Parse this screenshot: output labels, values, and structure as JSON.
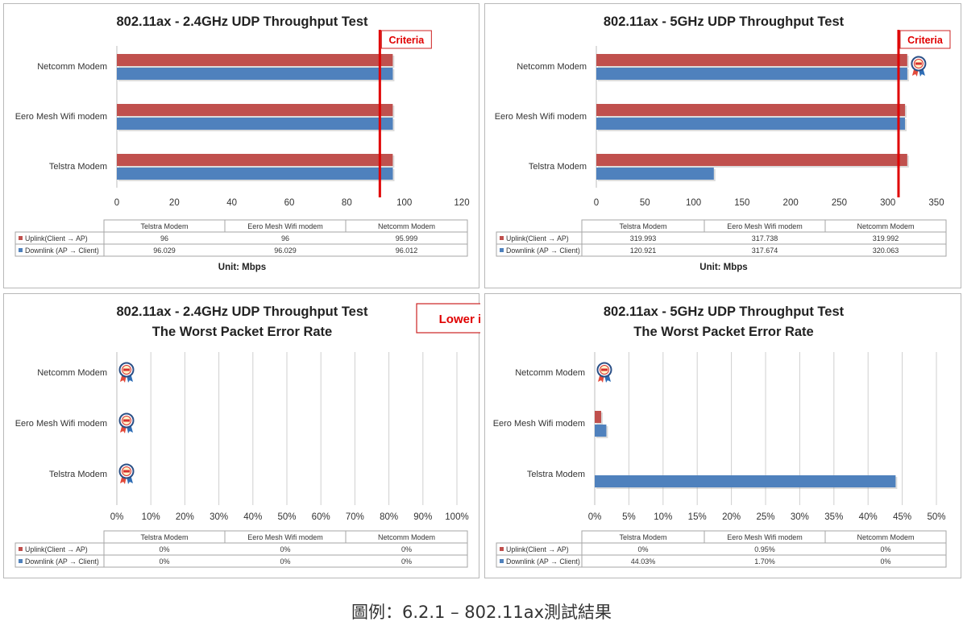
{
  "chart_data": [
    {
      "type": "bar",
      "title": [
        "802.11ax - 2.4GHz UDP Throughput Test"
      ],
      "categories": [
        "Netcomm Modem",
        "Eero Mesh Wifi modem",
        "Telstra Modem"
      ],
      "series": [
        {
          "name": "Uplink(Client → AP)",
          "color": "#c0504d",
          "values": [
            95.999,
            96,
            96
          ]
        },
        {
          "name": "Downlink (AP → Client)",
          "color": "#4f81bd",
          "values": [
            96.012,
            96.029,
            96.029
          ]
        }
      ],
      "xlim": [
        0,
        120
      ],
      "ticks": [
        0,
        20,
        40,
        60,
        80,
        100,
        120
      ],
      "tick_labels": [
        "0",
        "20",
        "40",
        "60",
        "80",
        "100",
        "120"
      ],
      "criteria": {
        "label": "Criteria",
        "value": 91.5
      },
      "table": {
        "columns": [
          "Telstra Modem",
          "Eero Mesh Wifi modem",
          "Netcomm Modem"
        ],
        "rows": [
          {
            "label": "Uplink(Client → AP)",
            "cells": [
              "96",
              "96",
              "95.999"
            ]
          },
          {
            "label": "Downlink (AP → Client)",
            "cells": [
              "96.029",
              "96.029",
              "96.012"
            ]
          }
        ]
      },
      "unit": "Unit: Mbps",
      "badges": [],
      "grid": false
    },
    {
      "type": "bar",
      "title": [
        "802.11ax - 5GHz UDP Throughput Test"
      ],
      "categories": [
        "Netcomm Modem",
        "Eero Mesh Wifi modem",
        "Telstra Modem"
      ],
      "series": [
        {
          "name": "Uplink(Client → AP)",
          "color": "#c0504d",
          "values": [
            319.992,
            317.738,
            319.993
          ]
        },
        {
          "name": "Downlink (AP → Client)",
          "color": "#4f81bd",
          "values": [
            320.063,
            317.674,
            120.921
          ]
        }
      ],
      "xlim": [
        0,
        350
      ],
      "ticks": [
        0,
        50,
        100,
        150,
        200,
        250,
        300,
        350
      ],
      "tick_labels": [
        "0",
        "50",
        "100",
        "150",
        "200",
        "250",
        "300",
        "350"
      ],
      "criteria": {
        "label": "Criteria",
        "value": 311
      },
      "table": {
        "columns": [
          "Telstra Modem",
          "Eero Mesh Wifi modem",
          "Netcomm Modem"
        ],
        "rows": [
          {
            "label": "Uplink(Client → AP)",
            "cells": [
              "319.993",
              "317.738",
              "319.992"
            ]
          },
          {
            "label": "Downlink (AP → Client)",
            "cells": [
              "120.921",
              "317.674",
              "320.063"
            ]
          }
        ]
      },
      "unit": "Unit: Mbps",
      "badges": [
        "Netcomm Modem"
      ],
      "badge_at": "end",
      "grid": false
    },
    {
      "type": "bar",
      "title": [
        "802.11ax - 2.4GHz UDP Throughput Test",
        "The Worst Packet Error Rate"
      ],
      "categories": [
        "Netcomm Modem",
        "Eero Mesh Wifi modem",
        "Telstra Modem"
      ],
      "series": [
        {
          "name": "Uplink(Client → AP)",
          "color": "#c0504d",
          "values": [
            0,
            0,
            0
          ]
        },
        {
          "name": "Downlink (AP → Client)",
          "color": "#4f81bd",
          "values": [
            0,
            0,
            0
          ]
        }
      ],
      "xlim": [
        0,
        100
      ],
      "ticks": [
        0,
        10,
        20,
        30,
        40,
        50,
        60,
        70,
        80,
        90,
        100
      ],
      "tick_labels": [
        "0%",
        "10%",
        "20%",
        "30%",
        "40%",
        "50%",
        "60%",
        "70%",
        "80%",
        "90%",
        "100%"
      ],
      "table": {
        "columns": [
          "Telstra Modem",
          "Eero Mesh Wifi modem",
          "Netcomm Modem"
        ],
        "rows": [
          {
            "label": "Uplink(Client → AP)",
            "cells": [
              "0%",
              "0%",
              "0%"
            ]
          },
          {
            "label": "Downlink (AP → Client)",
            "cells": [
              "0%",
              "0%",
              "0%"
            ]
          }
        ]
      },
      "note": "Lower is better",
      "badges": [
        "Netcomm Modem",
        "Eero Mesh Wifi modem",
        "Telstra Modem"
      ],
      "badge_at": "start",
      "grid": true
    },
    {
      "type": "bar",
      "title": [
        "802.11ax - 5GHz UDP Throughput Test",
        "The Worst Packet Error Rate"
      ],
      "categories": [
        "Netcomm Modem",
        "Eero Mesh Wifi modem",
        "Telstra Modem"
      ],
      "series": [
        {
          "name": "Uplink(Client → AP)",
          "color": "#c0504d",
          "values": [
            0,
            0.95,
            0
          ]
        },
        {
          "name": "Downlink (AP → Client)",
          "color": "#4f81bd",
          "values": [
            0,
            1.7,
            44.03
          ]
        }
      ],
      "xlim": [
        0,
        50
      ],
      "ticks": [
        0,
        5,
        10,
        15,
        20,
        25,
        30,
        35,
        40,
        45,
        50
      ],
      "tick_labels": [
        "0%",
        "5%",
        "10%",
        "15%",
        "20%",
        "25%",
        "30%",
        "35%",
        "40%",
        "45%",
        "50%"
      ],
      "table": {
        "columns": [
          "Telstra Modem",
          "Eero Mesh Wifi modem",
          "Netcomm Modem"
        ],
        "rows": [
          {
            "label": "Uplink(Client → AP)",
            "cells": [
              "0%",
              "0.95%",
              "0%"
            ]
          },
          {
            "label": "Downlink (AP → Client)",
            "cells": [
              "44.03%",
              "1.70%",
              "0%"
            ]
          }
        ]
      },
      "badges": [
        "Netcomm Modem"
      ],
      "badge_at": "start",
      "grid": true
    }
  ],
  "caption": "圖例：6.2.1 – 802.11ax測試結果"
}
